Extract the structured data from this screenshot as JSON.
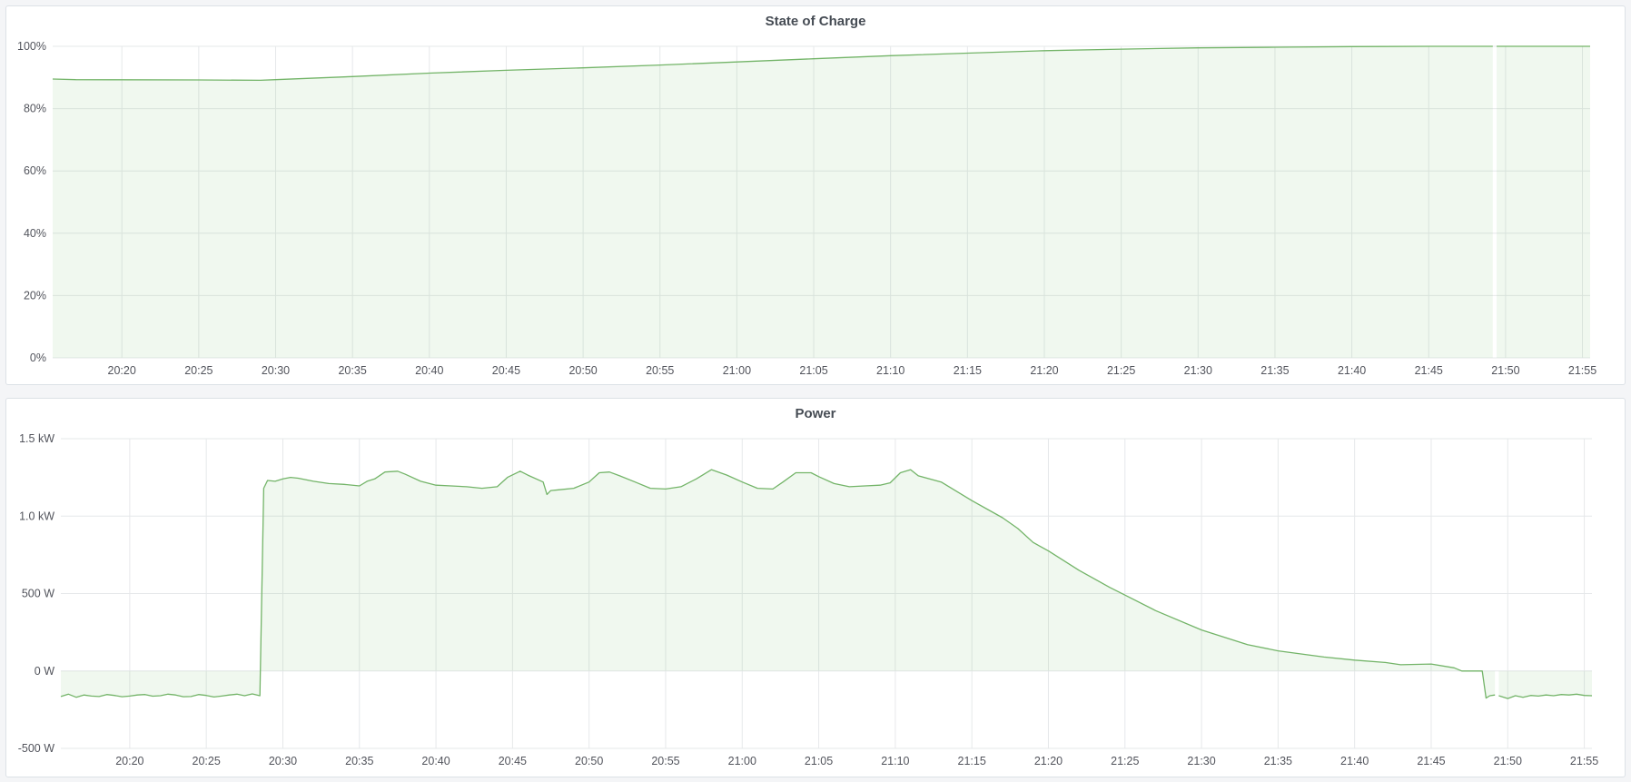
{
  "colors": {
    "line": "#73b468",
    "fill": "rgba(115,191,105,0.11)",
    "grid": "#e6e8ea"
  },
  "chart_data": [
    {
      "type": "area",
      "title": "State of Charge",
      "xlabel": "",
      "ylabel": "",
      "xlim": [
        "20:15:30",
        "21:55:30"
      ],
      "ylim": [
        0,
        100
      ],
      "grid": true,
      "legend": "none",
      "x_ticks": [
        "20:20",
        "20:25",
        "20:30",
        "20:35",
        "20:40",
        "20:45",
        "20:50",
        "20:55",
        "21:00",
        "21:05",
        "21:10",
        "21:15",
        "21:20",
        "21:25",
        "21:30",
        "21:35",
        "21:40",
        "21:45",
        "21:50",
        "21:55"
      ],
      "y_ticks": [
        {
          "value": 0,
          "label": "0%"
        },
        {
          "value": 20,
          "label": "20%"
        },
        {
          "value": 40,
          "label": "40%"
        },
        {
          "value": 60,
          "label": "60%"
        },
        {
          "value": 80,
          "label": "80%"
        },
        {
          "value": 100,
          "label": "100%"
        }
      ],
      "points": [
        [
          "20:15:30",
          89.5
        ],
        [
          "20:17:00",
          89.3
        ],
        [
          "20:25:00",
          89.2
        ],
        [
          "20:29:00",
          89.1
        ],
        [
          "20:30:00",
          89.3
        ],
        [
          "20:35:00",
          90.3
        ],
        [
          "20:40:00",
          91.4
        ],
        [
          "20:45:00",
          92.3
        ],
        [
          "20:50:00",
          93.1
        ],
        [
          "20:55:00",
          94.0
        ],
        [
          "21:00:00",
          95.0
        ],
        [
          "21:05:00",
          96.0
        ],
        [
          "21:10:00",
          97.0
        ],
        [
          "21:15:00",
          97.8
        ],
        [
          "21:20:00",
          98.6
        ],
        [
          "21:25:00",
          99.1
        ],
        [
          "21:30:00",
          99.5
        ],
        [
          "21:35:00",
          99.7
        ],
        [
          "21:40:00",
          99.9
        ],
        [
          "21:45:00",
          100
        ],
        [
          "21:49:10",
          100
        ],
        [
          "21:49:17",
          null
        ],
        [
          "21:49:25",
          100
        ],
        [
          "21:55:30",
          100
        ]
      ]
    },
    {
      "type": "area",
      "title": "Power",
      "xlabel": "",
      "ylabel": "",
      "xlim": [
        "20:15:30",
        "21:55:30"
      ],
      "ylim": [
        -500,
        1500
      ],
      "grid": true,
      "legend": "none",
      "x_ticks": [
        "20:20",
        "20:25",
        "20:30",
        "20:35",
        "20:40",
        "20:45",
        "20:50",
        "20:55",
        "21:00",
        "21:05",
        "21:10",
        "21:15",
        "21:20",
        "21:25",
        "21:30",
        "21:35",
        "21:40",
        "21:45",
        "21:50",
        "21:55"
      ],
      "y_ticks": [
        {
          "value": -500,
          "label": "-500 W"
        },
        {
          "value": 0,
          "label": "0 W"
        },
        {
          "value": 500,
          "label": "500 W"
        },
        {
          "value": 1000,
          "label": "1.0 kW"
        },
        {
          "value": 1500,
          "label": "1.5 kW"
        }
      ],
      "points": [
        [
          "20:15:30",
          -165
        ],
        [
          "20:16:00",
          -150
        ],
        [
          "20:16:30",
          -170
        ],
        [
          "20:17:00",
          -155
        ],
        [
          "20:17:30",
          -162
        ],
        [
          "20:18:00",
          -165
        ],
        [
          "20:18:30",
          -152
        ],
        [
          "20:19:00",
          -158
        ],
        [
          "20:19:30",
          -166
        ],
        [
          "20:20:00",
          -162
        ],
        [
          "20:20:30",
          -155
        ],
        [
          "20:21:00",
          -152
        ],
        [
          "20:21:30",
          -163
        ],
        [
          "20:22:00",
          -160
        ],
        [
          "20:22:30",
          -150
        ],
        [
          "20:23:00",
          -155
        ],
        [
          "20:23:30",
          -166
        ],
        [
          "20:24:00",
          -165
        ],
        [
          "20:24:30",
          -152
        ],
        [
          "20:25:00",
          -158
        ],
        [
          "20:25:30",
          -168
        ],
        [
          "20:26:00",
          -162
        ],
        [
          "20:26:30",
          -155
        ],
        [
          "20:27:00",
          -150
        ],
        [
          "20:27:30",
          -160
        ],
        [
          "20:28:00",
          -148
        ],
        [
          "20:28:30",
          -160
        ],
        [
          "20:28:45",
          1180
        ],
        [
          "20:29:00",
          1230
        ],
        [
          "20:29:30",
          1225
        ],
        [
          "20:30:00",
          1240
        ],
        [
          "20:30:30",
          1250
        ],
        [
          "20:31:00",
          1245
        ],
        [
          "20:32:00",
          1225
        ],
        [
          "20:33:00",
          1210
        ],
        [
          "20:34:00",
          1205
        ],
        [
          "20:35:00",
          1195
        ],
        [
          "20:35:30",
          1225
        ],
        [
          "20:36:00",
          1240
        ],
        [
          "20:36:40",
          1285
        ],
        [
          "20:37:30",
          1290
        ],
        [
          "20:38:00",
          1270
        ],
        [
          "20:39:00",
          1225
        ],
        [
          "20:40:00",
          1200
        ],
        [
          "20:41:00",
          1195
        ],
        [
          "20:42:00",
          1190
        ],
        [
          "20:43:00",
          1180
        ],
        [
          "20:44:00",
          1190
        ],
        [
          "20:44:40",
          1250
        ],
        [
          "20:45:30",
          1290
        ],
        [
          "20:46:00",
          1265
        ],
        [
          "20:47:00",
          1220
        ],
        [
          "20:47:15",
          1140
        ],
        [
          "20:47:30",
          1165
        ],
        [
          "20:48:00",
          1170
        ],
        [
          "20:49:00",
          1180
        ],
        [
          "20:50:00",
          1220
        ],
        [
          "20:50:40",
          1280
        ],
        [
          "20:51:20",
          1285
        ],
        [
          "20:52:00",
          1260
        ],
        [
          "20:53:00",
          1220
        ],
        [
          "20:54:00",
          1180
        ],
        [
          "20:55:00",
          1175
        ],
        [
          "20:56:00",
          1190
        ],
        [
          "20:57:00",
          1240
        ],
        [
          "20:58:00",
          1300
        ],
        [
          "20:59:00",
          1265
        ],
        [
          "21:00:00",
          1220
        ],
        [
          "21:01:00",
          1180
        ],
        [
          "21:02:00",
          1175
        ],
        [
          "21:02:40",
          1220
        ],
        [
          "21:03:30",
          1280
        ],
        [
          "21:04:30",
          1280
        ],
        [
          "21:05:00",
          1255
        ],
        [
          "21:06:00",
          1210
        ],
        [
          "21:07:00",
          1190
        ],
        [
          "21:08:00",
          1195
        ],
        [
          "21:09:00",
          1200
        ],
        [
          "21:09:40",
          1215
        ],
        [
          "21:10:20",
          1280
        ],
        [
          "21:11:00",
          1300
        ],
        [
          "21:11:30",
          1260
        ],
        [
          "21:13:00",
          1220
        ],
        [
          "21:15:00",
          1100
        ],
        [
          "21:17:00",
          990
        ],
        [
          "21:18:00",
          920
        ],
        [
          "21:19:00",
          830
        ],
        [
          "21:20:00",
          775
        ],
        [
          "21:22:00",
          650
        ],
        [
          "21:24:00",
          540
        ],
        [
          "21:25:00",
          490
        ],
        [
          "21:27:00",
          390
        ],
        [
          "21:30:00",
          265
        ],
        [
          "21:33:00",
          170
        ],
        [
          "21:35:00",
          130
        ],
        [
          "21:38:00",
          90
        ],
        [
          "21:40:00",
          70
        ],
        [
          "21:42:00",
          55
        ],
        [
          "21:43:00",
          40
        ],
        [
          "21:45:00",
          45
        ],
        [
          "21:46:30",
          20
        ],
        [
          "21:47:00",
          0
        ],
        [
          "21:48:20",
          0
        ],
        [
          "21:48:35",
          -175
        ],
        [
          "21:48:50",
          -160
        ],
        [
          "21:49:10",
          -155
        ],
        [
          "21:49:17",
          null
        ],
        [
          "21:49:25",
          -160
        ],
        [
          "21:50:00",
          -178
        ],
        [
          "21:50:30",
          -160
        ],
        [
          "21:51:00",
          -170
        ],
        [
          "21:51:30",
          -158
        ],
        [
          "21:52:00",
          -162
        ],
        [
          "21:52:30",
          -155
        ],
        [
          "21:53:00",
          -160
        ],
        [
          "21:53:30",
          -152
        ],
        [
          "21:54:00",
          -155
        ],
        [
          "21:54:30",
          -150
        ],
        [
          "21:55:00",
          -158
        ],
        [
          "21:55:30",
          -160
        ]
      ]
    }
  ]
}
